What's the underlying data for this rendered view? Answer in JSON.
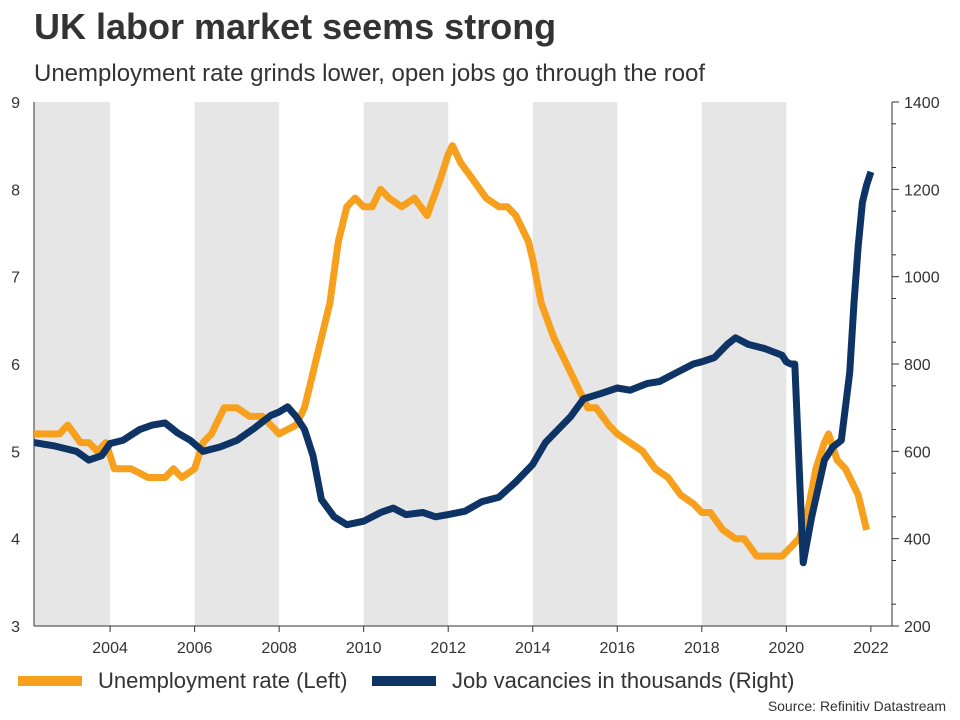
{
  "title": "UK labor market seems strong",
  "subtitle": "Unemployment rate grinds lower, open jobs go through the roof",
  "source": "Source: Refinitiv Datastream",
  "colors": {
    "unemployment": "#f7a01d",
    "vacancies": "#0e3466",
    "band": "#e6e6e6"
  },
  "chart_data": {
    "type": "line",
    "title": "UK labor market seems strong",
    "subtitle": "Unemployment rate grinds lower, open jobs go through the roof",
    "x_range": [
      2002.2,
      2022.5
    ],
    "x_ticks": [
      "2004",
      "2006",
      "2008",
      "2010",
      "2012",
      "2014",
      "2016",
      "2018",
      "2020",
      "2022"
    ],
    "y_left": {
      "range": [
        3,
        9
      ],
      "ticks": [
        "3",
        "4",
        "5",
        "6",
        "7",
        "8",
        "9"
      ]
    },
    "y_right": {
      "range": [
        200,
        1400
      ],
      "ticks": [
        "200",
        "400",
        "600",
        "800",
        "1000",
        "1200",
        "1400"
      ]
    },
    "shaded_years": [
      [
        2002.2,
        2004
      ],
      [
        2006,
        2008
      ],
      [
        2010,
        2012
      ],
      [
        2014,
        2016
      ],
      [
        2018,
        2020
      ]
    ],
    "grid": false,
    "legend_position": "bottom-left",
    "series": [
      {
        "name": "Unemployment rate (Left)",
        "axis": "left",
        "points": [
          [
            2002.2,
            5.2
          ],
          [
            2002.8,
            5.2
          ],
          [
            2003.0,
            5.3
          ],
          [
            2003.3,
            5.1
          ],
          [
            2003.5,
            5.1
          ],
          [
            2003.7,
            5.0
          ],
          [
            2003.9,
            5.1
          ],
          [
            2004.1,
            4.8
          ],
          [
            2004.5,
            4.8
          ],
          [
            2004.9,
            4.7
          ],
          [
            2005.3,
            4.7
          ],
          [
            2005.5,
            4.8
          ],
          [
            2005.7,
            4.7
          ],
          [
            2006.0,
            4.8
          ],
          [
            2006.2,
            5.1
          ],
          [
            2006.4,
            5.2
          ],
          [
            2006.7,
            5.5
          ],
          [
            2007.0,
            5.5
          ],
          [
            2007.3,
            5.4
          ],
          [
            2007.6,
            5.4
          ],
          [
            2007.8,
            5.3
          ],
          [
            2008.0,
            5.2
          ],
          [
            2008.4,
            5.3
          ],
          [
            2008.6,
            5.5
          ],
          [
            2008.8,
            5.9
          ],
          [
            2009.0,
            6.3
          ],
          [
            2009.2,
            6.7
          ],
          [
            2009.4,
            7.4
          ],
          [
            2009.6,
            7.8
          ],
          [
            2009.8,
            7.9
          ],
          [
            2010.0,
            7.8
          ],
          [
            2010.2,
            7.8
          ],
          [
            2010.4,
            8.0
          ],
          [
            2010.6,
            7.9
          ],
          [
            2010.9,
            7.8
          ],
          [
            2011.2,
            7.9
          ],
          [
            2011.5,
            7.7
          ],
          [
            2011.8,
            8.1
          ],
          [
            2012.0,
            8.4
          ],
          [
            2012.1,
            8.5
          ],
          [
            2012.3,
            8.3
          ],
          [
            2012.6,
            8.1
          ],
          [
            2012.9,
            7.9
          ],
          [
            2013.2,
            7.8
          ],
          [
            2013.4,
            7.8
          ],
          [
            2013.6,
            7.7
          ],
          [
            2013.9,
            7.4
          ],
          [
            2014.0,
            7.2
          ],
          [
            2014.2,
            6.7
          ],
          [
            2014.5,
            6.3
          ],
          [
            2014.8,
            6.0
          ],
          [
            2015.0,
            5.8
          ],
          [
            2015.3,
            5.5
          ],
          [
            2015.5,
            5.5
          ],
          [
            2015.8,
            5.3
          ],
          [
            2016.0,
            5.2
          ],
          [
            2016.3,
            5.1
          ],
          [
            2016.6,
            5.0
          ],
          [
            2016.9,
            4.8
          ],
          [
            2017.2,
            4.7
          ],
          [
            2017.5,
            4.5
          ],
          [
            2017.8,
            4.4
          ],
          [
            2018.0,
            4.3
          ],
          [
            2018.2,
            4.3
          ],
          [
            2018.5,
            4.1
          ],
          [
            2018.8,
            4.0
          ],
          [
            2019.0,
            4.0
          ],
          [
            2019.3,
            3.8
          ],
          [
            2019.6,
            3.8
          ],
          [
            2019.9,
            3.8
          ],
          [
            2020.1,
            3.9
          ],
          [
            2020.3,
            4.0
          ],
          [
            2020.5,
            4.3
          ],
          [
            2020.7,
            4.8
          ],
          [
            2020.9,
            5.1
          ],
          [
            2021.0,
            5.2
          ],
          [
            2021.2,
            4.9
          ],
          [
            2021.4,
            4.8
          ],
          [
            2021.6,
            4.6
          ],
          [
            2021.7,
            4.5
          ],
          [
            2021.9,
            4.1
          ]
        ]
      },
      {
        "name": "Job vacancies in thousands (Right)",
        "axis": "right",
        "points": [
          [
            2002.2,
            620
          ],
          [
            2002.7,
            612
          ],
          [
            2003.2,
            600
          ],
          [
            2003.5,
            580
          ],
          [
            2003.8,
            590
          ],
          [
            2004.0,
            618
          ],
          [
            2004.3,
            625
          ],
          [
            2004.7,
            650
          ],
          [
            2005.0,
            660
          ],
          [
            2005.3,
            665
          ],
          [
            2005.6,
            642
          ],
          [
            2005.9,
            625
          ],
          [
            2006.2,
            600
          ],
          [
            2006.6,
            610
          ],
          [
            2007.0,
            625
          ],
          [
            2007.4,
            652
          ],
          [
            2007.8,
            682
          ],
          [
            2008.0,
            690
          ],
          [
            2008.2,
            702
          ],
          [
            2008.4,
            680
          ],
          [
            2008.6,
            650
          ],
          [
            2008.8,
            590
          ],
          [
            2009.0,
            490
          ],
          [
            2009.3,
            450
          ],
          [
            2009.6,
            432
          ],
          [
            2010.0,
            440
          ],
          [
            2010.4,
            460
          ],
          [
            2010.7,
            470
          ],
          [
            2011.0,
            455
          ],
          [
            2011.4,
            460
          ],
          [
            2011.7,
            450
          ],
          [
            2012.0,
            455
          ],
          [
            2012.4,
            463
          ],
          [
            2012.8,
            485
          ],
          [
            2013.2,
            495
          ],
          [
            2013.6,
            530
          ],
          [
            2014.0,
            570
          ],
          [
            2014.3,
            620
          ],
          [
            2014.6,
            650
          ],
          [
            2014.9,
            680
          ],
          [
            2015.2,
            720
          ],
          [
            2015.6,
            732
          ],
          [
            2016.0,
            745
          ],
          [
            2016.3,
            740
          ],
          [
            2016.7,
            755
          ],
          [
            2017.0,
            760
          ],
          [
            2017.4,
            780
          ],
          [
            2017.8,
            800
          ],
          [
            2018.0,
            805
          ],
          [
            2018.3,
            815
          ],
          [
            2018.6,
            845
          ],
          [
            2018.8,
            860
          ],
          [
            2019.1,
            845
          ],
          [
            2019.5,
            835
          ],
          [
            2019.9,
            820
          ],
          [
            2020.0,
            805
          ],
          [
            2020.1,
            800
          ],
          [
            2020.2,
            800
          ],
          [
            2020.4,
            345
          ],
          [
            2020.6,
            450
          ],
          [
            2020.9,
            580
          ],
          [
            2021.1,
            610
          ],
          [
            2021.3,
            625
          ],
          [
            2021.5,
            780
          ],
          [
            2021.6,
            940
          ],
          [
            2021.7,
            1070
          ],
          [
            2021.8,
            1170
          ],
          [
            2021.9,
            1210
          ],
          [
            2022.0,
            1240
          ]
        ]
      }
    ]
  }
}
